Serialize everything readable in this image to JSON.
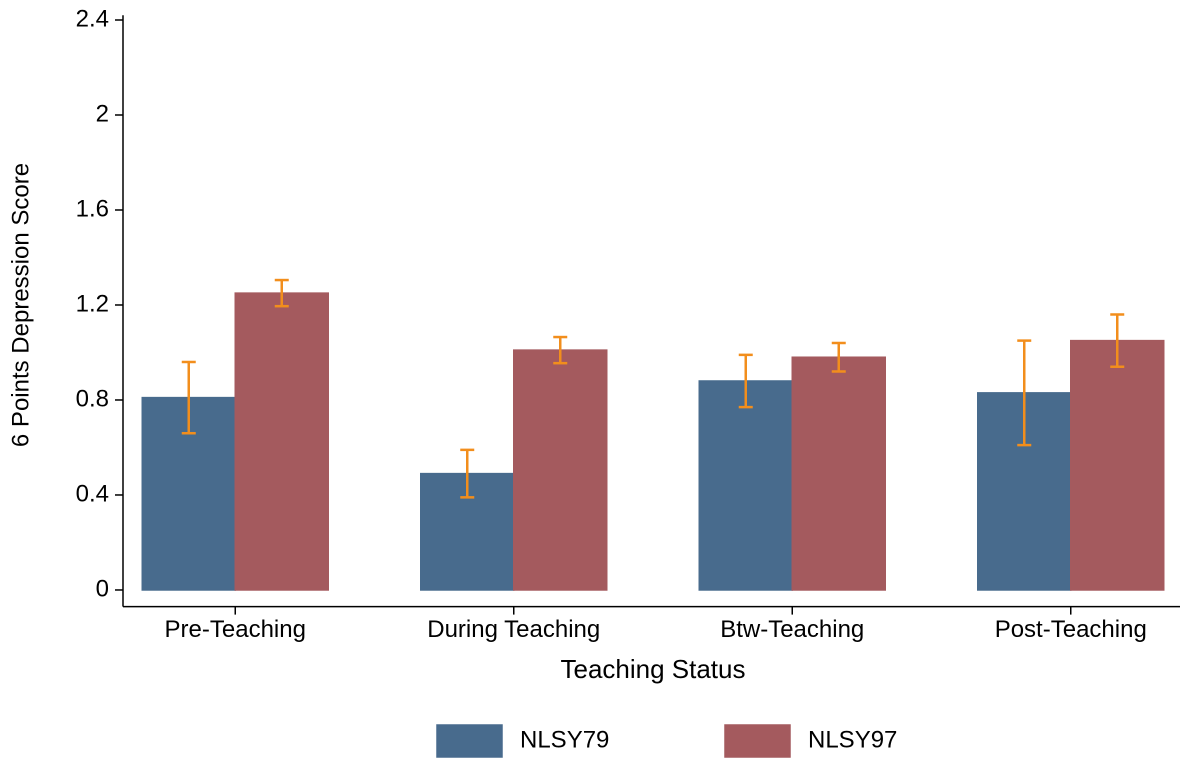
{
  "chart_data": {
    "type": "bar",
    "x_label": "Teaching Status",
    "y_label": "6 Points Depression Score",
    "categories": [
      "Pre-Teaching",
      "During Teaching",
      "Btw-Teaching",
      "Post-Teaching"
    ],
    "series": [
      {
        "name": "NLSY79",
        "color": "#486b8d",
        "values": [
          0.81,
          0.49,
          0.88,
          0.83
        ],
        "errors": [
          0.15,
          0.1,
          0.11,
          0.22
        ]
      },
      {
        "name": "NLSY97",
        "color": "#a45a5e",
        "values": [
          1.25,
          1.01,
          0.98,
          1.05
        ],
        "errors": [
          0.055,
          0.055,
          0.06,
          0.11
        ]
      }
    ],
    "error_color": "#f28e1c",
    "ylim": [
      -0.07,
      2.42
    ],
    "yticks": [
      0,
      0.4,
      0.8,
      1.2,
      1.6,
      2,
      2.4
    ],
    "grid": false,
    "legend": "bottom"
  }
}
